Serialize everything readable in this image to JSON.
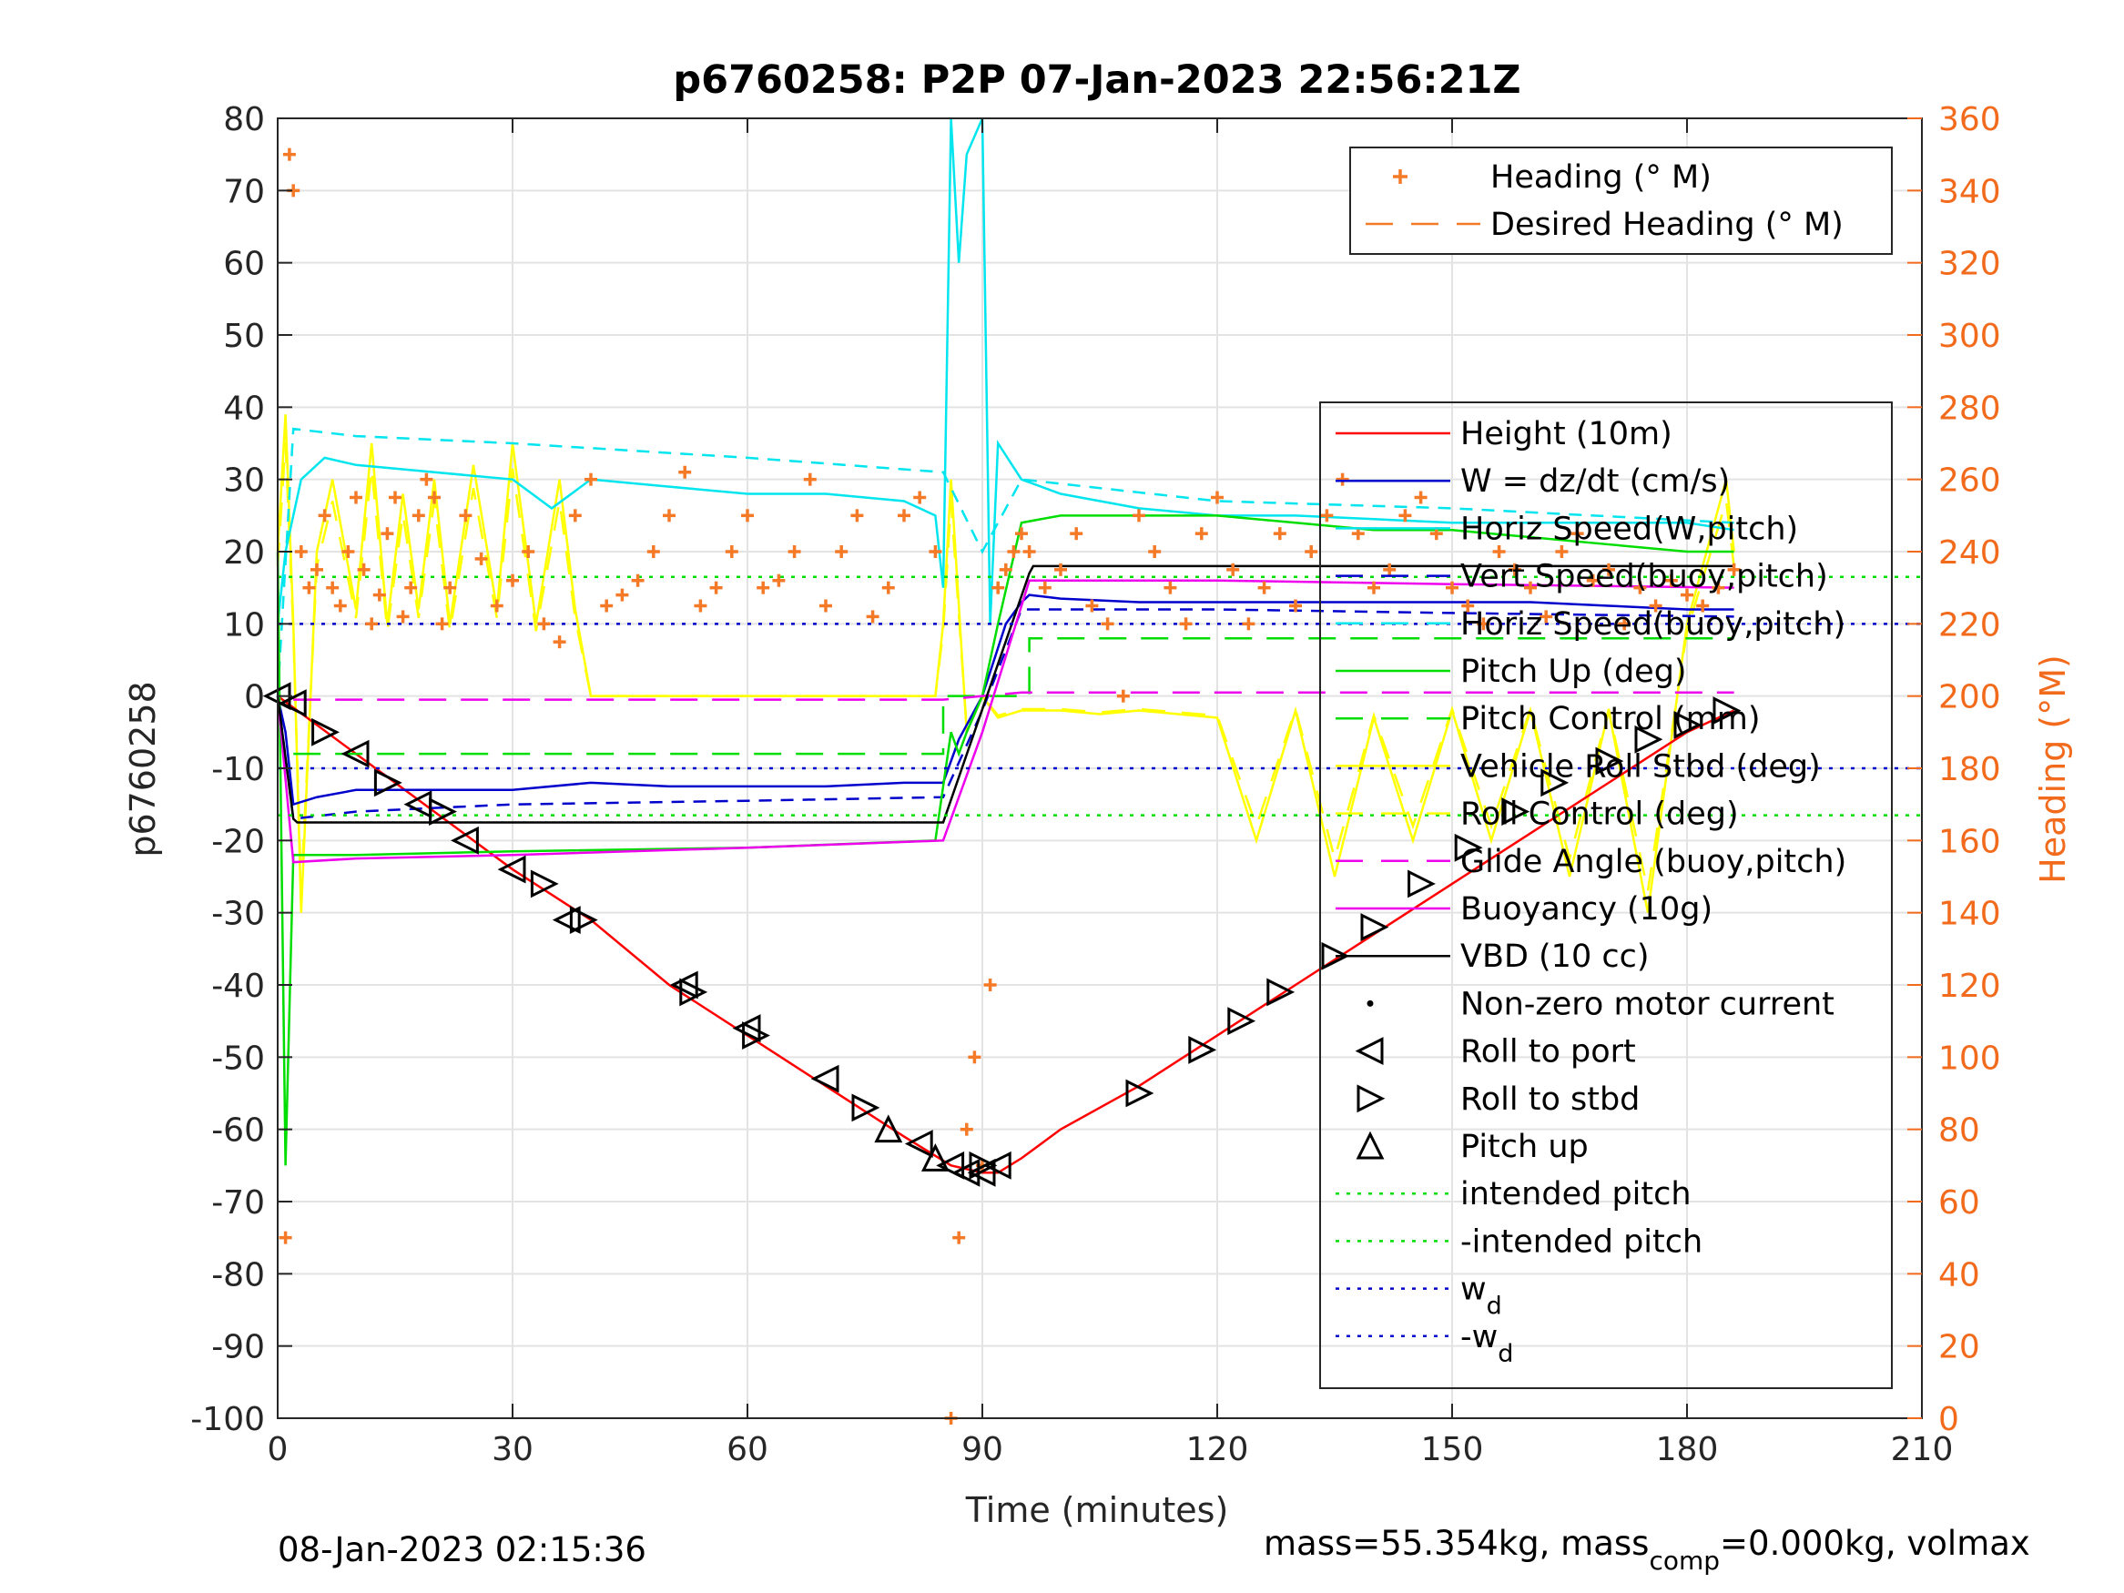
{
  "chart_data": {
    "type": "line",
    "title": "p6760258: P2P 07-Jan-2023 22:56:21Z",
    "xlabel": "Time (minutes)",
    "ylabel": "p6760258",
    "ylabel_right": "Heading (°M)",
    "xlim": [
      0,
      210
    ],
    "ylim": [
      -100,
      80
    ],
    "ylim_right": [
      0,
      360
    ],
    "xticks": [
      0,
      30,
      60,
      90,
      120,
      150,
      180,
      210
    ],
    "yticks": [
      80,
      70,
      60,
      50,
      40,
      30,
      20,
      10,
      0,
      -10,
      -20,
      -30,
      -40,
      -50,
      -60,
      -70,
      -80,
      -90,
      -100
    ],
    "yticks_right": [
      360,
      340,
      320,
      300,
      280,
      260,
      240,
      220,
      200,
      180,
      160,
      140,
      120,
      100,
      80,
      60,
      40,
      20,
      0
    ],
    "grid": true,
    "footer_left": "08-Jan-2023 02:15:36",
    "footer_right_prefix": "mass=55.354kg, mass",
    "footer_right_sub": "comp",
    "footer_right_suffix": "=0.000kg, volmax",
    "legend_top": [
      {
        "label": "Heading (° M)",
        "color": "#f47a28",
        "style": "plus"
      },
      {
        "label": "Desired Heading (° M)",
        "color": "#f47a28",
        "style": "dashed"
      }
    ],
    "legend_main": [
      {
        "label": "Height (10m)",
        "color": "#ff0000",
        "style": "solid"
      },
      {
        "label": "W = dz/dt (cm/s)",
        "color": "#0000cc",
        "style": "solid"
      },
      {
        "label": "Horiz Speed(W,pitch)",
        "color": "#00e5ee",
        "style": "solid"
      },
      {
        "label": "Vert Speed(buoy,pitch)",
        "color": "#0000cc",
        "style": "dashed"
      },
      {
        "label": "Horiz Speed(buoy,pitch)",
        "color": "#00e5ee",
        "style": "dashed"
      },
      {
        "label": "Pitch Up (deg)",
        "color": "#00dd00",
        "style": "solid"
      },
      {
        "label": "Pitch Control (mm)",
        "color": "#00dd00",
        "style": "dashed"
      },
      {
        "label": "Vehicle Roll Stbd (deg)",
        "color": "#ffff00",
        "style": "solid"
      },
      {
        "label": "Roll Control (deg)",
        "color": "#ffff00",
        "style": "dashed"
      },
      {
        "label": "Glide Angle (buoy,pitch)",
        "color": "#ee00ee",
        "style": "dashed"
      },
      {
        "label": "Buoyancy (10g)",
        "color": "#ee00ee",
        "style": "solid"
      },
      {
        "label": "VBD (10 cc)",
        "color": "#000000",
        "style": "solid"
      },
      {
        "label": "Non-zero motor current",
        "color": "#000000",
        "style": "dot"
      },
      {
        "label": "Roll to port",
        "color": "#000000",
        "style": "tri-left"
      },
      {
        "label": "Roll to stbd",
        "color": "#000000",
        "style": "tri-right"
      },
      {
        "label": "Pitch up",
        "color": "#000000",
        "style": "tri-up"
      },
      {
        "label": "intended pitch",
        "color": "#00dd00",
        "style": "dotted"
      },
      {
        "label": "-intended pitch",
        "color": "#00dd00",
        "style": "dotted"
      },
      {
        "label": "w",
        "sub": "d",
        "color": "#0000cc",
        "style": "dotted"
      },
      {
        "label": "-w",
        "sub": "d",
        "color": "#0000cc",
        "style": "dotted"
      }
    ],
    "series": [
      {
        "name": "Height (10m)",
        "color": "#ff0000",
        "x": [
          0,
          10,
          20,
          30,
          40,
          50,
          60,
          70,
          80,
          86,
          90,
          92,
          95,
          100,
          110,
          120,
          130,
          140,
          150,
          160,
          170,
          180,
          186
        ],
        "y": [
          0,
          -8,
          -16,
          -24,
          -31,
          -40,
          -47,
          -54,
          -61,
          -65,
          -66,
          -66,
          -64,
          -60,
          -54,
          -47,
          -40,
          -33,
          -26,
          -19,
          -12,
          -5,
          -2
        ]
      },
      {
        "name": "W = dz/dt (cm/s)",
        "color": "#0000cc",
        "x": [
          0,
          1,
          2,
          5,
          10,
          20,
          30,
          40,
          50,
          60,
          70,
          80,
          85,
          87,
          90,
          93,
          95,
          96,
          100,
          110,
          120,
          130,
          140,
          150,
          160,
          170,
          180,
          186
        ],
        "y": [
          0,
          -5,
          -15,
          -14,
          -13,
          -13,
          -13,
          -12,
          -12.5,
          -12.5,
          -12.5,
          -12,
          -12,
          -6,
          0,
          10,
          13,
          14,
          13.5,
          13,
          13,
          13,
          13,
          13,
          13,
          12.5,
          12,
          12
        ]
      },
      {
        "name": "Horiz Speed(W,pitch)",
        "color": "#00e5ee",
        "x": [
          0,
          1,
          3,
          6,
          10,
          20,
          30,
          35,
          40,
          50,
          60,
          70,
          80,
          84,
          85,
          86,
          87,
          88,
          90,
          91,
          92,
          95,
          100,
          110,
          120,
          130,
          140,
          150,
          160,
          170,
          180,
          186
        ],
        "y": [
          10,
          20,
          30,
          33,
          32,
          31,
          30,
          26,
          30,
          29,
          28,
          28,
          27,
          25,
          15,
          80,
          60,
          75,
          80,
          10,
          35,
          30,
          28,
          26,
          25,
          25,
          24.5,
          24,
          24,
          24,
          24,
          23
        ]
      },
      {
        "name": "Vert Speed(buoy,pitch)",
        "color": "#0000cc",
        "dash": "14,10",
        "x": [
          0,
          2,
          10,
          30,
          60,
          85,
          90,
          95,
          120,
          150,
          186
        ],
        "y": [
          0,
          -17,
          -16,
          -15,
          -14.5,
          -14,
          -2,
          12,
          12,
          11.5,
          11
        ]
      },
      {
        "name": "Horiz Speed(buoy,pitch)",
        "color": "#00e5ee",
        "dash": "14,10",
        "x": [
          0,
          2,
          10,
          30,
          60,
          85,
          90,
          95,
          120,
          150,
          186
        ],
        "y": [
          0,
          37,
          36,
          35,
          33,
          31,
          20,
          30,
          27,
          26,
          24
        ]
      },
      {
        "name": "Pitch Up (deg)",
        "color": "#00dd00",
        "x": [
          0,
          1,
          2,
          3,
          10,
          30,
          60,
          84,
          86,
          87,
          88,
          90,
          92,
          95,
          100,
          110,
          120,
          130,
          140,
          150,
          160,
          170,
          180,
          186
        ],
        "y": [
          20,
          -65,
          -22,
          -22,
          -22,
          -21.5,
          -21,
          -20,
          -5,
          -8,
          -5,
          0,
          10,
          24,
          25,
          25,
          25,
          24,
          23,
          23,
          22,
          21,
          20,
          20
        ]
      },
      {
        "name": "Pitch Control (mm)",
        "color": "#00dd00",
        "dash": "30,16",
        "x": [
          2,
          85,
          85,
          96,
          96,
          186
        ],
        "y": [
          -8,
          -8,
          0,
          0,
          8,
          8
        ]
      },
      {
        "name": "Glide Angle (buoy,pitch)",
        "color": "#ee00ee",
        "dash": "30,16",
        "x": [
          2,
          85,
          90,
          95,
          186
        ],
        "y": [
          -0.5,
          -0.5,
          0,
          0.5,
          0.5
        ]
      },
      {
        "name": "Buoyancy (10g)",
        "color": "#ee00ee",
        "x": [
          0,
          2,
          10,
          30,
          60,
          85,
          90,
          96,
          120,
          150,
          186
        ],
        "y": [
          0,
          -23,
          -22.5,
          -22,
          -21,
          -20,
          -5,
          16,
          16,
          15.5,
          15
        ]
      },
      {
        "name": "VBD (10 cc)",
        "color": "#000000",
        "x": [
          0,
          2,
          2.5,
          85,
          96,
          96.5,
          186
        ],
        "y": [
          0,
          -17,
          -17.5,
          -17.5,
          17,
          18,
          18
        ]
      },
      {
        "name": "intended pitch",
        "color": "#00dd00",
        "dash": "4,8",
        "x": [
          0,
          210
        ],
        "y": [
          16.5,
          16.5
        ]
      },
      {
        "name": "-intended pitch",
        "color": "#00dd00",
        "dash": "4,8",
        "x": [
          0,
          210
        ],
        "y": [
          -16.5,
          -16.5
        ]
      },
      {
        "name": "w_d",
        "color": "#0000cc",
        "dash": "4,8",
        "x": [
          0,
          210
        ],
        "y": [
          10,
          10
        ]
      },
      {
        "name": "-w_d",
        "color": "#0000cc",
        "dash": "4,8",
        "x": [
          0,
          210
        ],
        "y": [
          -10,
          -10
        ]
      }
    ],
    "heading": {
      "name": "Heading (° M)",
      "color": "#f47a28",
      "x": [
        1,
        1.5,
        2,
        3,
        4,
        5,
        6,
        7,
        8,
        9,
        10,
        11,
        12,
        13,
        14,
        15,
        16,
        17,
        18,
        19,
        20,
        21,
        22,
        24,
        26,
        28,
        30,
        32,
        34,
        36,
        38,
        40,
        42,
        44,
        46,
        48,
        50,
        52,
        54,
        56,
        58,
        60,
        62,
        64,
        66,
        68,
        70,
        72,
        74,
        76,
        78,
        80,
        82,
        84,
        86,
        87,
        88,
        89,
        90,
        91,
        92,
        93,
        94,
        95,
        96,
        98,
        100,
        102,
        104,
        106,
        108,
        110,
        112,
        114,
        116,
        118,
        120,
        122,
        124,
        126,
        128,
        130,
        132,
        134,
        136,
        138,
        140,
        142,
        144,
        146,
        148,
        150,
        152,
        154,
        156,
        158,
        160,
        162,
        164,
        166,
        168,
        170,
        172,
        174,
        176,
        178,
        180,
        182,
        184,
        186
      ],
      "y": [
        50,
        350,
        340,
        240,
        230,
        235,
        250,
        230,
        225,
        240,
        255,
        235,
        220,
        228,
        245,
        255,
        222,
        230,
        250,
        260,
        255,
        220,
        230,
        250,
        238,
        225,
        232,
        240,
        220,
        215,
        250,
        260,
        225,
        228,
        232,
        240,
        250,
        262,
        225,
        230,
        240,
        250,
        230,
        232,
        240,
        260,
        225,
        240,
        250,
        222,
        230,
        250,
        255,
        240,
        0,
        50,
        80,
        100,
        70,
        120,
        230,
        235,
        240,
        245,
        240,
        230,
        235,
        245,
        225,
        220,
        200,
        250,
        240,
        230,
        220,
        245,
        255,
        235,
        220,
        230,
        245,
        225,
        240,
        250,
        260,
        245,
        230,
        235,
        250,
        255,
        245,
        230,
        225,
        220,
        240,
        235,
        230,
        222,
        240,
        245,
        232,
        235,
        220,
        230,
        225,
        232,
        228,
        225,
        230,
        235
      ]
    },
    "roll_yellow": {
      "name": "Vehicle Roll Stbd (deg)",
      "color": "#ffff00",
      "x": [
        0,
        1,
        2,
        3,
        5,
        7,
        10,
        12,
        14,
        16,
        18,
        20,
        22,
        25,
        28,
        30,
        33,
        36,
        38,
        40,
        45,
        50,
        55,
        60,
        65,
        70,
        75,
        80,
        84,
        85,
        86,
        88,
        90,
        92,
        95,
        100,
        105,
        110,
        115,
        120,
        125,
        130,
        135,
        140,
        145,
        150,
        155,
        160,
        165,
        170,
        175,
        180,
        185,
        186
      ],
      "y": [
        20,
        39,
        10,
        -30,
        20,
        30,
        12,
        35,
        10,
        28,
        12,
        30,
        10,
        32,
        12,
        35,
        10,
        30,
        12,
        0,
        0,
        0,
        0,
        0,
        0,
        0,
        0,
        0,
        0,
        10,
        30,
        -5,
        0,
        -3,
        -2,
        -2,
        -2.5,
        -2,
        -2.5,
        -3,
        -20,
        -2,
        -25,
        -3,
        -20,
        -2,
        -20,
        -2,
        -25,
        -2,
        -30,
        10,
        30,
        20
      ]
    },
    "markers_roll_port": {
      "x": [
        0,
        2,
        10,
        18,
        24,
        30,
        37,
        52,
        60,
        70,
        82,
        86,
        88,
        90,
        92
      ],
      "y": [
        0,
        -1,
        -8,
        -15,
        -20,
        -24,
        -31,
        -40,
        -46,
        -53,
        -62,
        -65,
        -66,
        -66,
        -65
      ]
    },
    "markers_roll_stbd": {
      "x": [
        6,
        14,
        21,
        34,
        39,
        53,
        61,
        75,
        90,
        110,
        118,
        123,
        128,
        135,
        140,
        146,
        152,
        158,
        163,
        170,
        175,
        180,
        185
      ],
      "y": [
        -5,
        -12,
        -16,
        -26,
        -31,
        -41,
        -47,
        -57,
        -65,
        -55,
        -49,
        -45,
        -41,
        -36,
        -32,
        -26,
        -21,
        -16,
        -12,
        -9,
        -6,
        -4,
        -2
      ]
    },
    "markers_pitch_up": {
      "x": [
        78,
        84
      ],
      "y": [
        -60,
        -64
      ]
    }
  }
}
